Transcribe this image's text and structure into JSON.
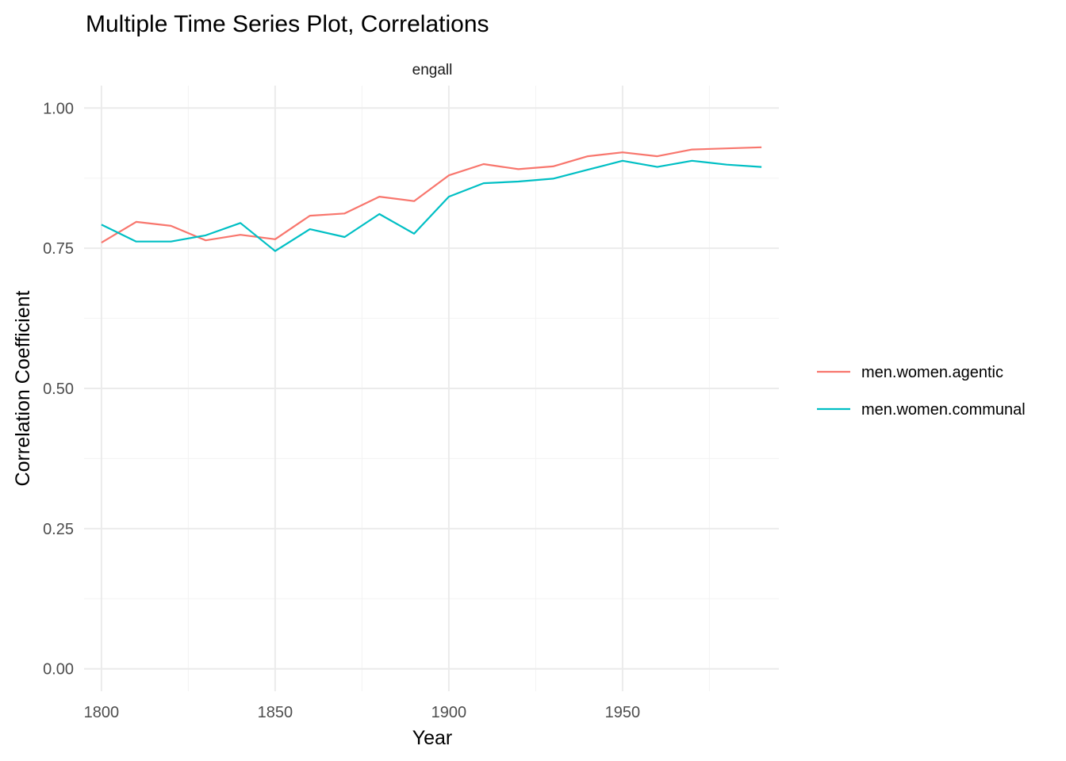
{
  "chart_data": {
    "type": "line",
    "title": "Multiple Time Series Plot, Correlations",
    "facet_label": "engall",
    "xlabel": "Year",
    "ylabel": "Correlation Coefficient",
    "xlim": [
      1795,
      1995
    ],
    "ylim": [
      -0.04,
      1.04
    ],
    "x_ticks": [
      1800,
      1850,
      1900,
      1950
    ],
    "y_ticks": [
      0.0,
      0.25,
      0.5,
      0.75,
      1.0
    ],
    "y_tick_labels": [
      "0.00",
      "0.25",
      "0.50",
      "0.75",
      "1.00"
    ],
    "grid": true,
    "legend_position": "right",
    "x": [
      1800,
      1810,
      1820,
      1830,
      1840,
      1850,
      1860,
      1870,
      1880,
      1890,
      1900,
      1910,
      1920,
      1930,
      1940,
      1950,
      1960,
      1970,
      1980,
      1990
    ],
    "series": [
      {
        "name": "men.women.agentic",
        "color": "#F8766D",
        "values": [
          0.76,
          0.797,
          0.79,
          0.764,
          0.774,
          0.766,
          0.808,
          0.812,
          0.842,
          0.834,
          0.88,
          0.9,
          0.891,
          0.896,
          0.914,
          0.921,
          0.914,
          0.926,
          0.928,
          0.93
        ]
      },
      {
        "name": "men.women.communal",
        "color": "#00BFC4",
        "values": [
          0.792,
          0.762,
          0.762,
          0.773,
          0.795,
          0.745,
          0.784,
          0.77,
          0.811,
          0.776,
          0.842,
          0.866,
          0.869,
          0.874,
          0.89,
          0.906,
          0.895,
          0.906,
          0.899,
          0.895
        ]
      }
    ]
  }
}
